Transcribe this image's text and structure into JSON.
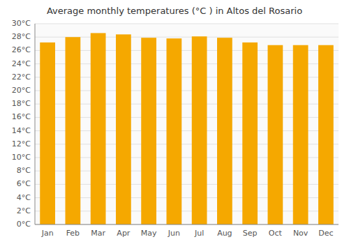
{
  "chart_data": {
    "type": "bar",
    "title": "Average monthly temperatures (°C ) in Altos del Rosario",
    "categories": [
      "Jan",
      "Feb",
      "Mar",
      "Apr",
      "May",
      "Jun",
      "Jul",
      "Aug",
      "Sep",
      "Oct",
      "Nov",
      "Dec"
    ],
    "values": [
      27.2,
      28.0,
      28.6,
      28.4,
      27.9,
      27.8,
      28.1,
      27.9,
      27.2,
      26.8,
      26.8,
      26.8
    ],
    "color": "#F5A800",
    "ylim": [
      0,
      30
    ],
    "yticks": [
      {
        "value": 0,
        "label": "0°C"
      },
      {
        "value": 2,
        "label": "2°C"
      },
      {
        "value": 4,
        "label": "4°C"
      },
      {
        "value": 6,
        "label": "6°C"
      },
      {
        "value": 8,
        "label": "8°C"
      },
      {
        "value": 10,
        "label": "10°C"
      },
      {
        "value": 12,
        "label": "12°C"
      },
      {
        "value": 14,
        "label": "14°C"
      },
      {
        "value": 16,
        "label": "16°C"
      },
      {
        "value": 18,
        "label": "18°C"
      },
      {
        "value": 20,
        "label": "20°C"
      },
      {
        "value": 22,
        "label": "22°C"
      },
      {
        "value": 24,
        "label": "24°C"
      },
      {
        "value": 26,
        "label": "26°C"
      },
      {
        "value": 28,
        "label": "28°C"
      },
      {
        "value": 30,
        "label": "30°C"
      }
    ],
    "grid": true
  }
}
